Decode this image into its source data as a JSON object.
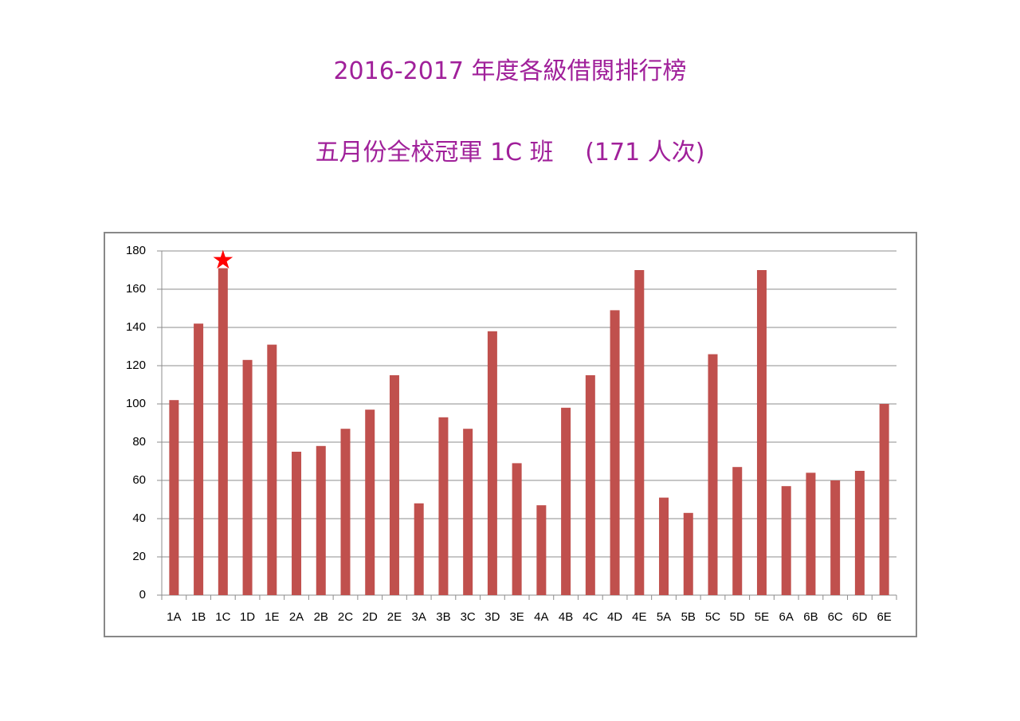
{
  "chart_data": {
    "type": "bar",
    "title": "2016-2017 年度各級借閱排行榜",
    "subtitle": "五月份全校冠軍 1C 班　 (171 人次)",
    "categories": [
      "1A",
      "1B",
      "1C",
      "1D",
      "1E",
      "2A",
      "2B",
      "2C",
      "2D",
      "2E",
      "3A",
      "3B",
      "3C",
      "3D",
      "3E",
      "4A",
      "4B",
      "4C",
      "4D",
      "4E",
      "5A",
      "5B",
      "5C",
      "5D",
      "5E",
      "6A",
      "6B",
      "6C",
      "6D",
      "6E"
    ],
    "values": [
      102,
      142,
      171,
      123,
      131,
      75,
      78,
      87,
      97,
      115,
      48,
      93,
      87,
      138,
      69,
      47,
      98,
      115,
      149,
      170,
      51,
      43,
      126,
      67,
      170,
      57,
      64,
      60,
      65,
      100
    ],
    "color": "#c0504d",
    "ylim": [
      0,
      180
    ],
    "yticks": [
      0,
      20,
      40,
      60,
      80,
      100,
      120,
      140,
      160,
      180
    ],
    "grid": true
  }
}
